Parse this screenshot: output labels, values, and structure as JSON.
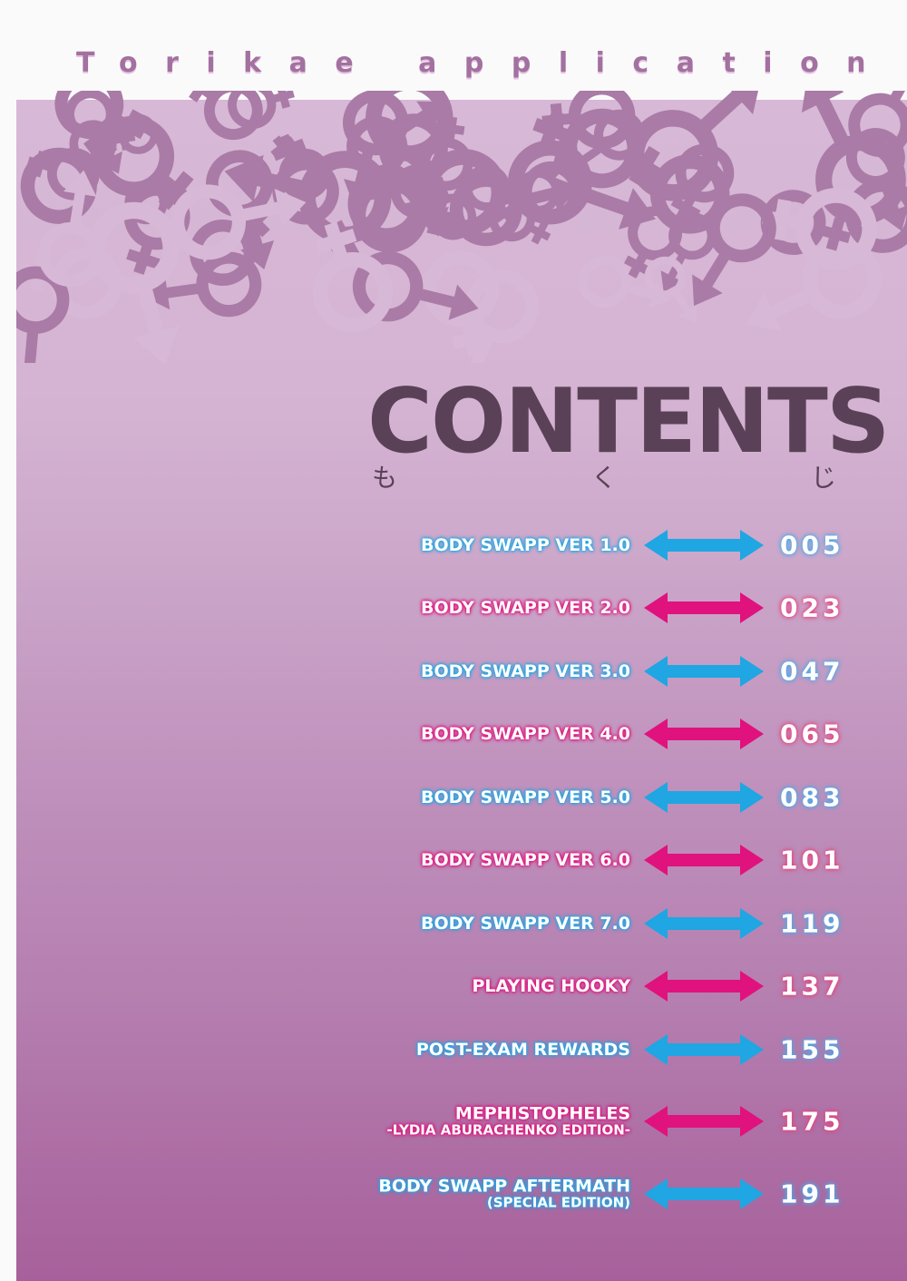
{
  "series_title": "Torikae application",
  "heading": "CONTENTS",
  "heading_kana": [
    "も",
    "く",
    "じ"
  ],
  "colors": {
    "blue": "#1fa6e3",
    "pink": "#e0127d",
    "heading": "#5a4157",
    "series": "#a2719f"
  },
  "entries": [
    {
      "title": "BODY SWAPP VER 1.0",
      "subtitle": "",
      "page": "005",
      "color": "blue"
    },
    {
      "title": "BODY SWAPP VER 2.0",
      "subtitle": "",
      "page": "023",
      "color": "pink"
    },
    {
      "title": "BODY SWAPP VER 3.0",
      "subtitle": "",
      "page": "047",
      "color": "blue"
    },
    {
      "title": "BODY SWAPP VER 4.0",
      "subtitle": "",
      "page": "065",
      "color": "pink"
    },
    {
      "title": "BODY SWAPP VER 5.0",
      "subtitle": "",
      "page": "083",
      "color": "blue"
    },
    {
      "title": "BODY SWAPP VER 6.0",
      "subtitle": "",
      "page": "101",
      "color": "pink"
    },
    {
      "title": "BODY SWAPP VER 7.0",
      "subtitle": "",
      "page": "119",
      "color": "blue"
    },
    {
      "title": "PLAYING HOOKY",
      "subtitle": "",
      "page": "137",
      "color": "pink"
    },
    {
      "title": "POST-EXAM REWARDS",
      "subtitle": "",
      "page": "155",
      "color": "blue"
    },
    {
      "title": "MEPHISTOPHELES",
      "subtitle": "-LYDIA ABURACHENKO EDITION-",
      "page": "175",
      "color": "pink"
    },
    {
      "title": "BODY SWAPP AFTERMATH",
      "subtitle": "(SPECIAL EDITION)",
      "page": "191",
      "color": "blue"
    }
  ]
}
